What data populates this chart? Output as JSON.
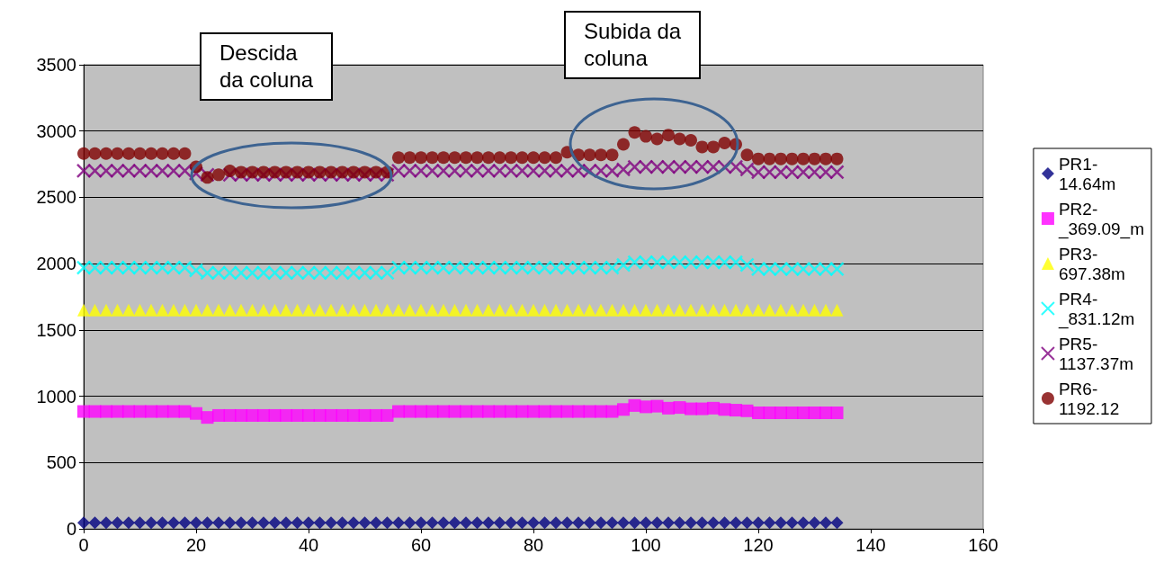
{
  "chart_data": {
    "type": "scatter",
    "x": [
      0,
      2,
      4,
      6,
      8,
      10,
      12,
      14,
      16,
      18,
      20,
      22,
      24,
      26,
      28,
      30,
      32,
      34,
      36,
      38,
      40,
      42,
      44,
      46,
      48,
      50,
      52,
      54,
      56,
      58,
      60,
      62,
      64,
      66,
      68,
      70,
      72,
      74,
      76,
      78,
      80,
      82,
      84,
      86,
      88,
      90,
      92,
      94,
      96,
      98,
      100,
      102,
      104,
      106,
      108,
      110,
      112,
      114,
      116,
      118,
      120,
      122,
      124,
      126,
      128,
      130,
      132,
      134
    ],
    "series": [
      {
        "name": "PR1-14.64m",
        "color": "#000080",
        "marker": "diamond",
        "values": [
          45,
          45,
          45,
          45,
          45,
          45,
          45,
          45,
          45,
          45,
          45,
          45,
          45,
          45,
          45,
          45,
          45,
          45,
          45,
          45,
          45,
          45,
          45,
          45,
          45,
          45,
          45,
          45,
          45,
          45,
          45,
          45,
          45,
          45,
          45,
          45,
          45,
          45,
          45,
          45,
          45,
          45,
          45,
          45,
          45,
          45,
          45,
          45,
          45,
          45,
          45,
          45,
          45,
          45,
          45,
          45,
          45,
          45,
          45,
          45,
          45,
          45,
          45,
          45,
          45,
          45,
          45,
          45
        ]
      },
      {
        "name": "PR2-_369.09_m",
        "color": "#ff00ff",
        "marker": "square",
        "values": [
          885,
          885,
          885,
          885,
          885,
          885,
          885,
          885,
          885,
          885,
          870,
          840,
          855,
          855,
          855,
          855,
          855,
          855,
          855,
          855,
          855,
          855,
          855,
          855,
          855,
          855,
          855,
          855,
          885,
          885,
          885,
          885,
          885,
          885,
          885,
          885,
          885,
          885,
          885,
          885,
          885,
          885,
          885,
          885,
          885,
          885,
          885,
          885,
          900,
          930,
          920,
          925,
          910,
          915,
          905,
          905,
          910,
          900,
          895,
          890,
          875,
          875,
          875,
          875,
          875,
          875,
          875,
          875
        ]
      },
      {
        "name": "PR3-697.38m",
        "color": "#ffff00",
        "marker": "triangle",
        "values": [
          1650,
          1650,
          1650,
          1650,
          1650,
          1650,
          1650,
          1650,
          1650,
          1650,
          1650,
          1650,
          1650,
          1650,
          1650,
          1650,
          1650,
          1650,
          1650,
          1650,
          1650,
          1650,
          1650,
          1650,
          1650,
          1650,
          1650,
          1650,
          1650,
          1650,
          1650,
          1650,
          1650,
          1650,
          1650,
          1650,
          1650,
          1650,
          1650,
          1650,
          1650,
          1650,
          1650,
          1650,
          1650,
          1650,
          1650,
          1650,
          1650,
          1650,
          1650,
          1650,
          1650,
          1650,
          1650,
          1650,
          1650,
          1650,
          1650,
          1650,
          1650,
          1650,
          1650,
          1650,
          1650,
          1650,
          1650,
          1650
        ]
      },
      {
        "name": "PR4-_831.12m",
        "color": "#00ffff",
        "marker": "cross",
        "values": [
          1970,
          1970,
          1970,
          1970,
          1970,
          1970,
          1970,
          1970,
          1970,
          1970,
          1950,
          1930,
          1930,
          1930,
          1930,
          1930,
          1930,
          1930,
          1930,
          1930,
          1930,
          1930,
          1930,
          1930,
          1930,
          1930,
          1930,
          1930,
          1970,
          1970,
          1970,
          1970,
          1970,
          1970,
          1970,
          1970,
          1970,
          1970,
          1970,
          1970,
          1970,
          1970,
          1970,
          1970,
          1970,
          1970,
          1970,
          1970,
          1990,
          2010,
          2010,
          2010,
          2010,
          2010,
          2010,
          2010,
          2010,
          2010,
          2010,
          1990,
          1960,
          1960,
          1960,
          1960,
          1960,
          1960,
          1960,
          1960
        ]
      },
      {
        "name": "PR5-1137.37m",
        "color": "#800080",
        "marker": "cross",
        "values": [
          2700,
          2700,
          2700,
          2700,
          2700,
          2700,
          2700,
          2700,
          2700,
          2700,
          2680,
          2670,
          null,
          2670,
          2670,
          2670,
          2670,
          2670,
          2670,
          2670,
          2670,
          2670,
          2670,
          2670,
          2670,
          2670,
          2670,
          2670,
          2700,
          2700,
          2700,
          2700,
          2700,
          2700,
          2700,
          2700,
          2700,
          2700,
          2700,
          2700,
          2700,
          2700,
          2700,
          2700,
          2700,
          2700,
          2700,
          2700,
          2710,
          2730,
          2730,
          2730,
          2730,
          2730,
          2730,
          2730,
          2730,
          2730,
          2730,
          2710,
          2690,
          2690,
          2690,
          2690,
          2690,
          2690,
          2690,
          2690
        ]
      },
      {
        "name": "PR6-1192.12",
        "color": "#800000",
        "marker": "circle",
        "values": [
          2830,
          2830,
          2830,
          2830,
          2830,
          2830,
          2830,
          2830,
          2830,
          2830,
          2730,
          2650,
          2670,
          2700,
          2690,
          2690,
          2690,
          2690,
          2690,
          2690,
          2690,
          2690,
          2690,
          2690,
          2690,
          2690,
          2690,
          2690,
          2800,
          2800,
          2800,
          2800,
          2800,
          2800,
          2800,
          2800,
          2800,
          2800,
          2800,
          2800,
          2800,
          2800,
          2800,
          2840,
          2820,
          2820,
          2820,
          2820,
          2900,
          2990,
          2960,
          2940,
          2970,
          2940,
          2930,
          2880,
          2880,
          2910,
          2900,
          2820,
          2790,
          2790,
          2790,
          2790,
          2790,
          2790,
          2790,
          2790
        ]
      }
    ],
    "xlim": [
      0,
      160
    ],
    "xticks": [
      0,
      20,
      40,
      60,
      80,
      100,
      120,
      140,
      160
    ],
    "ylim": [
      0,
      3500
    ],
    "yticks": [
      0,
      500,
      1000,
      1500,
      2000,
      2500,
      3000,
      3500
    ],
    "grid": "y",
    "legend": "right",
    "annotations": [
      "Descida\nda coluna",
      "Subida  da\ncoluna"
    ]
  }
}
